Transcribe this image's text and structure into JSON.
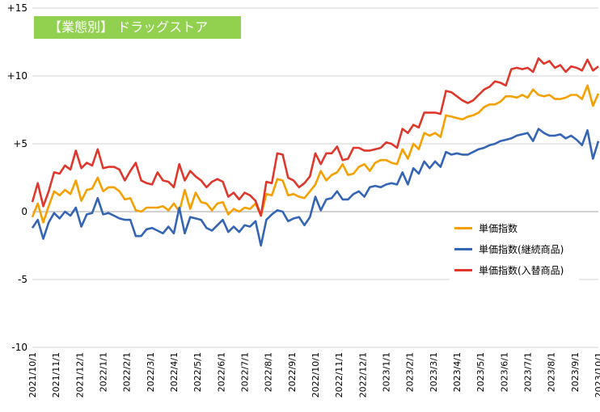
{
  "chart_data": {
    "type": "line",
    "title": "【業態別】 ドラッグストア",
    "xlabel": "",
    "ylabel": "",
    "ylim": [
      -10,
      15
    ],
    "y_ticks": [
      15,
      10,
      5,
      0,
      -5,
      -10
    ],
    "y_tick_labels": [
      "+15",
      "+10",
      "+5",
      "0",
      "-5",
      "-10"
    ],
    "grid": "horizontal",
    "legend_position": "right-middle",
    "x_tick_labels": [
      "2021/10/1",
      "2021/11/1",
      "2021/12/1",
      "2022/1/1",
      "2022/2/1",
      "2022/3/1",
      "2022/4/1",
      "2022/5/1",
      "2022/6/1",
      "2022/7/1",
      "2022/8/1",
      "2022/9/1",
      "2022/10/1",
      "2022/11/1",
      "2022/12/1",
      "2023/1/1",
      "2023/2/1",
      "2023/3/1",
      "2023/4/1",
      "2023/5/1",
      "2023/6/1",
      "2023/7/1",
      "2023/8/1",
      "2023/9/1",
      "2023/10/1"
    ],
    "series": [
      {
        "name": "単価指数",
        "color": "#f5a000",
        "values": [
          -0.4,
          0.6,
          -0.8,
          0.4,
          1.5,
          1.2,
          1.6,
          1.3,
          2.3,
          0.8,
          1.6,
          1.7,
          2.5,
          1.5,
          1.8,
          1.8,
          1.5,
          0.9,
          1.0,
          0.1,
          0.0,
          0.3,
          0.3,
          0.3,
          0.4,
          0.1,
          0.6,
          0.0,
          1.6,
          0.2,
          1.4,
          0.7,
          0.6,
          0.1,
          0.6,
          0.7,
          -0.2,
          0.2,
          0.0,
          0.3,
          0.2,
          0.6,
          -0.3,
          1.3,
          1.2,
          2.4,
          2.3,
          1.2,
          1.3,
          1.1,
          1.0,
          1.5,
          2.0,
          3.0,
          2.3,
          2.7,
          2.9,
          3.5,
          2.7,
          2.8,
          3.3,
          3.5,
          3.0,
          3.6,
          3.8,
          3.8,
          3.6,
          3.5,
          4.6,
          3.9,
          5.0,
          4.6,
          5.8,
          5.6,
          5.8,
          5.5,
          7.1,
          7.0,
          6.9,
          6.8,
          7.0,
          7.1,
          7.3,
          7.7,
          7.9,
          7.9,
          8.1,
          8.5,
          8.5,
          8.4,
          8.6,
          8.4,
          9.0,
          8.6,
          8.5,
          8.6,
          8.3,
          8.3,
          8.4,
          8.6,
          8.6,
          8.3,
          9.3,
          7.8,
          8.7
        ]
      },
      {
        "name": "単価指数(継続商品)",
        "color": "#3464b4",
        "values": [
          -1.2,
          -0.6,
          -2.0,
          -0.8,
          -0.1,
          -0.5,
          0.0,
          -0.3,
          0.3,
          -1.1,
          -0.2,
          -0.1,
          1.0,
          -0.2,
          -0.1,
          -0.3,
          -0.5,
          -0.6,
          -0.6,
          -1.8,
          -1.8,
          -1.3,
          -1.2,
          -1.4,
          -1.6,
          -1.1,
          -1.6,
          0.3,
          -1.6,
          -0.4,
          -0.5,
          -0.6,
          -1.2,
          -1.4,
          -1.0,
          -0.6,
          -1.5,
          -1.1,
          -1.5,
          -1.0,
          -1.1,
          -0.7,
          -2.5,
          -0.6,
          -0.2,
          0.1,
          0.0,
          -0.7,
          -0.5,
          -0.4,
          -1.0,
          -0.4,
          1.1,
          0.1,
          0.9,
          1.0,
          1.5,
          0.9,
          0.9,
          1.3,
          1.5,
          1.1,
          1.8,
          1.9,
          1.8,
          2.0,
          2.1,
          2.0,
          2.9,
          2.0,
          3.2,
          2.8,
          3.7,
          3.2,
          3.7,
          3.3,
          4.4,
          4.2,
          4.3,
          4.2,
          4.2,
          4.4,
          4.6,
          4.7,
          4.9,
          5.0,
          5.2,
          5.3,
          5.4,
          5.6,
          5.7,
          5.8,
          5.2,
          6.1,
          5.8,
          5.6,
          5.6,
          5.7,
          5.4,
          5.6,
          5.3,
          4.9,
          6.0,
          3.9,
          5.2
        ]
      },
      {
        "name": "単価指数(入替商品)",
        "color": "#e0372c",
        "values": [
          0.7,
          2.1,
          0.4,
          1.5,
          2.9,
          2.8,
          3.4,
          3.1,
          4.5,
          3.2,
          3.6,
          3.4,
          4.6,
          3.2,
          3.3,
          3.3,
          3.1,
          2.3,
          3.0,
          3.6,
          2.3,
          2.1,
          2.0,
          2.9,
          2.3,
          2.2,
          1.8,
          3.5,
          2.3,
          3.0,
          2.6,
          2.3,
          1.8,
          2.2,
          2.4,
          2.2,
          1.1,
          1.4,
          0.9,
          1.4,
          1.2,
          0.8,
          -0.3,
          2.2,
          2.1,
          4.3,
          4.2,
          2.5,
          2.3,
          1.8,
          2.1,
          2.6,
          4.3,
          3.5,
          4.3,
          4.3,
          4.8,
          3.8,
          3.9,
          4.7,
          4.7,
          4.5,
          4.5,
          4.6,
          4.7,
          5.1,
          5.0,
          4.7,
          6.1,
          5.8,
          6.4,
          6.2,
          7.3,
          7.3,
          7.3,
          7.2,
          8.9,
          8.8,
          8.5,
          8.2,
          8.0,
          8.2,
          8.6,
          9.0,
          9.2,
          9.6,
          9.5,
          9.3,
          10.5,
          10.6,
          10.5,
          10.6,
          10.3,
          11.3,
          10.9,
          11.1,
          10.6,
          10.8,
          10.3,
          10.7,
          10.6,
          10.4,
          11.2,
          10.4,
          10.7
        ]
      }
    ]
  }
}
